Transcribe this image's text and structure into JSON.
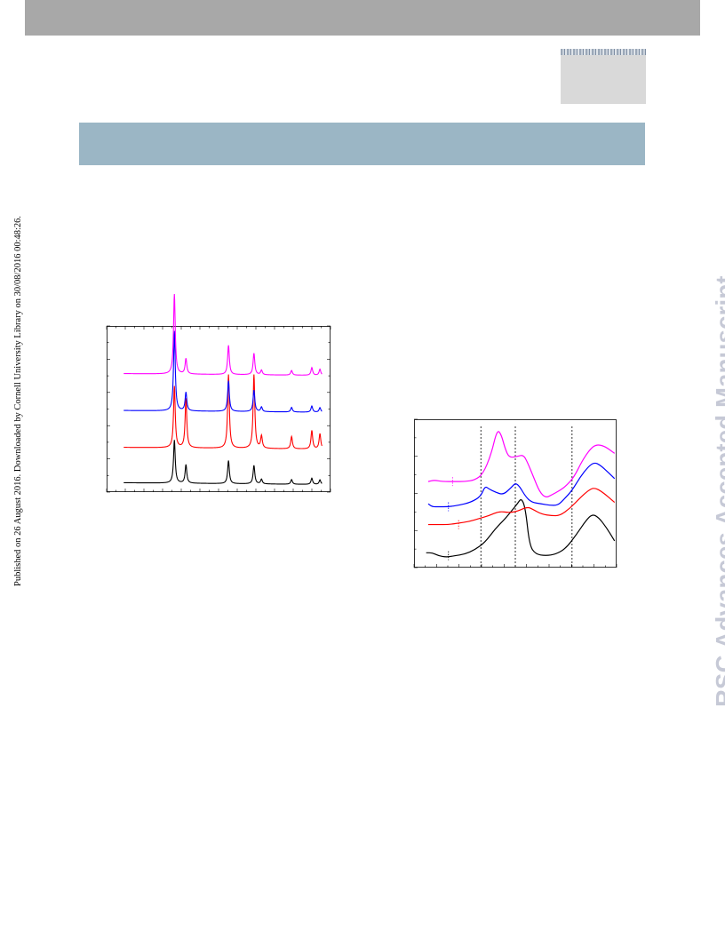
{
  "sidebar": {
    "publication_note": "Published on 26 August 2016. Downloaded by Cornell University Library on 30/08/2016 00:48:26."
  },
  "watermark": {
    "text": "RSC Advances Accepted Manuscript",
    "color": "#c6c9d6"
  },
  "colors": {
    "header_bar": "#a8a8a8",
    "title_band": "#9bb6c5",
    "logo_box": "#d9d9d9"
  },
  "chart_data": [
    {
      "type": "line",
      "title": "",
      "xlabel": "",
      "ylabel": "",
      "grid": false,
      "legend": "none",
      "xlim": [
        10,
        80
      ],
      "ylim": [
        0,
        100
      ],
      "series": [
        {
          "color": "#000000",
          "offset": 0,
          "peaks": [
            [
              28.5,
              28
            ],
            [
              32.5,
              12
            ],
            [
              47.2,
              15
            ],
            [
              56.0,
              12
            ],
            [
              58.6,
              3
            ],
            [
              69.0,
              3
            ],
            [
              76.0,
              4
            ],
            [
              78.8,
              3
            ]
          ]
        },
        {
          "color": "#ff0000",
          "offset": 23,
          "peaks": [
            [
              28.5,
              40
            ],
            [
              32.5,
              32
            ],
            [
              47.2,
              48
            ],
            [
              56.0,
              48
            ],
            [
              58.6,
              8
            ],
            [
              69.0,
              8
            ],
            [
              76.0,
              12
            ],
            [
              78.8,
              10
            ]
          ]
        },
        {
          "color": "#0000ff",
          "offset": 47,
          "peaks": [
            [
              28.5,
              52
            ],
            [
              32.5,
              12
            ],
            [
              47.2,
              20
            ],
            [
              56.0,
              14
            ],
            [
              58.6,
              3
            ],
            [
              69.0,
              3
            ],
            [
              76.0,
              4
            ],
            [
              78.8,
              3
            ]
          ]
        },
        {
          "color": "#ff00ff",
          "offset": 71,
          "peaks": [
            [
              28.5,
              52
            ],
            [
              32.5,
              10
            ],
            [
              47.2,
              19
            ],
            [
              56.0,
              14
            ],
            [
              58.6,
              3
            ],
            [
              69.0,
              3
            ],
            [
              76.0,
              5
            ],
            [
              78.8,
              4
            ]
          ]
        }
      ]
    },
    {
      "type": "line",
      "title": "",
      "xlabel": "",
      "ylabel": "",
      "grid": false,
      "legend": "none",
      "xlim": [
        0,
        100
      ],
      "ylim": [
        0,
        100
      ],
      "reference_lines_x": [
        33,
        50,
        78
      ],
      "series": [
        {
          "color": "#000000",
          "points": [
            [
              6,
              10
            ],
            [
              9,
              10
            ],
            [
              12,
              8
            ],
            [
              16,
              7
            ],
            [
              20,
              8
            ],
            [
              25,
              9
            ],
            [
              30,
              12
            ],
            [
              35,
              17
            ],
            [
              40,
              26
            ],
            [
              45,
              33
            ],
            [
              48,
              38
            ],
            [
              51,
              43
            ],
            [
              53,
              47
            ],
            [
              55,
              40
            ],
            [
              57,
              15
            ],
            [
              60,
              9
            ],
            [
              65,
              8
            ],
            [
              70,
              9
            ],
            [
              75,
              13
            ],
            [
              80,
              22
            ],
            [
              85,
              32
            ],
            [
              88,
              36
            ],
            [
              91,
              34
            ],
            [
              95,
              27
            ],
            [
              99,
              18
            ]
          ]
        },
        {
          "color": "#ff0000",
          "points": [
            [
              7,
              29
            ],
            [
              12,
              29
            ],
            [
              17,
              29
            ],
            [
              22,
              30
            ],
            [
              27,
              31
            ],
            [
              32,
              33
            ],
            [
              37,
              35
            ],
            [
              42,
              38
            ],
            [
              47,
              37
            ],
            [
              51,
              38
            ],
            [
              56,
              41
            ],
            [
              59,
              39
            ],
            [
              63,
              36
            ],
            [
              68,
              35
            ],
            [
              72,
              35
            ],
            [
              77,
              40
            ],
            [
              82,
              47
            ],
            [
              86,
              52
            ],
            [
              89,
              54
            ],
            [
              93,
              51
            ],
            [
              99,
              44
            ]
          ]
        },
        {
          "color": "#0000ff",
          "points": [
            [
              7,
              43
            ],
            [
              9,
              41
            ],
            [
              12,
              41
            ],
            [
              17,
              41
            ],
            [
              22,
              42
            ],
            [
              28,
              44
            ],
            [
              33,
              48
            ],
            [
              35,
              55
            ],
            [
              37,
              53
            ],
            [
              40,
              51
            ],
            [
              44,
              49
            ],
            [
              48,
              54
            ],
            [
              50,
              57
            ],
            [
              52,
              55
            ],
            [
              55,
              48
            ],
            [
              58,
              44
            ],
            [
              63,
              43
            ],
            [
              67,
              42
            ],
            [
              71,
              42
            ],
            [
              74,
              46
            ],
            [
              78,
              52
            ],
            [
              82,
              61
            ],
            [
              86,
              68
            ],
            [
              89,
              71
            ],
            [
              92,
              69
            ],
            [
              96,
              64
            ],
            [
              99,
              60
            ]
          ]
        },
        {
          "color": "#ff00ff",
          "points": [
            [
              7,
              58
            ],
            [
              10,
              59
            ],
            [
              14,
              58
            ],
            [
              20,
              58
            ],
            [
              25,
              58
            ],
            [
              30,
              59
            ],
            [
              34,
              63
            ],
            [
              38,
              76
            ],
            [
              41,
              93
            ],
            [
              43,
              90
            ],
            [
              45,
              80
            ],
            [
              47,
              74
            ],
            [
              51,
              75
            ],
            [
              54,
              76
            ],
            [
              56,
              71
            ],
            [
              59,
              61
            ],
            [
              62,
              51
            ],
            [
              65,
              47
            ],
            [
              68,
              49
            ],
            [
              72,
              52
            ],
            [
              75,
              55
            ],
            [
              79,
              61
            ],
            [
              83,
              72
            ],
            [
              87,
              80
            ],
            [
              90,
              83
            ],
            [
              94,
              82
            ],
            [
              99,
              77
            ]
          ]
        }
      ]
    }
  ]
}
